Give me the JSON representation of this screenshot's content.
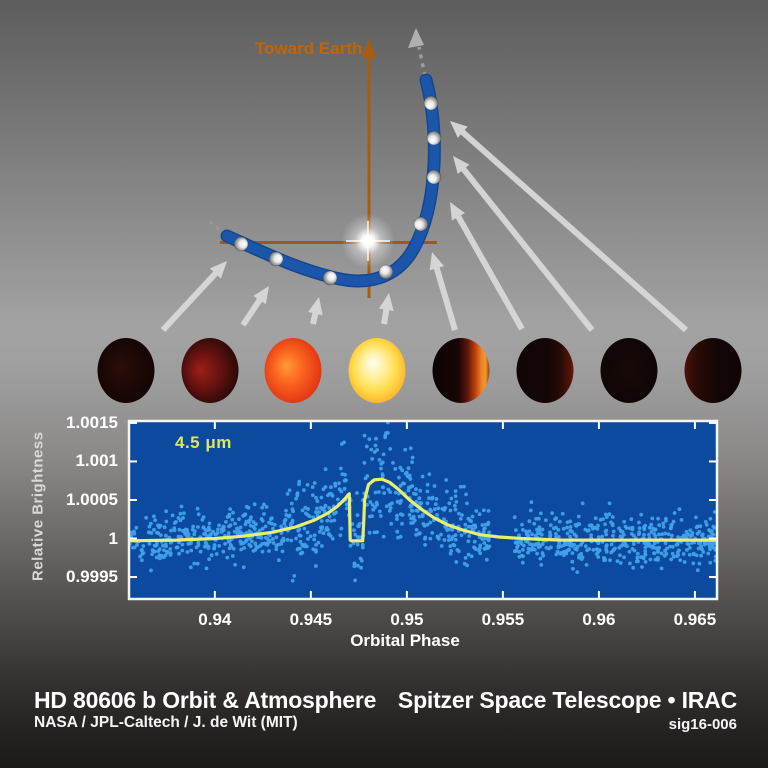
{
  "diagram": {
    "toward_earth_label": "Toward Earth",
    "colors": {
      "axis_orange": "#a85c10",
      "text_orange": "#c26504",
      "orbit_blue": "#1c56aa",
      "arrow_gray": "#dadada",
      "star_white": "#ffffff"
    },
    "planet_phases": [
      {
        "name": "night-side-cold",
        "type": "radial",
        "fx": 0.38,
        "fy": 0.45,
        "stops": [
          [
            0,
            "#2c0e08"
          ],
          [
            55,
            "#190705"
          ],
          [
            100,
            "#0d0403"
          ]
        ]
      },
      {
        "name": "warming-dawn-glow",
        "type": "radial",
        "fx": 0.32,
        "fy": 0.5,
        "stops": [
          [
            0,
            "#9c2016"
          ],
          [
            40,
            "#661210"
          ],
          [
            75,
            "#2b0a07"
          ],
          [
            100,
            "#130504"
          ]
        ]
      },
      {
        "name": "rapid-heating",
        "type": "radial",
        "fx": 0.38,
        "fy": 0.42,
        "stops": [
          [
            0,
            "#ff9c36"
          ],
          [
            35,
            "#fb6420"
          ],
          [
            70,
            "#e63a14"
          ],
          [
            100,
            "#ad2410"
          ]
        ]
      },
      {
        "name": "peak-heating-hottest",
        "type": "radial",
        "fx": 0.42,
        "fy": 0.38,
        "stops": [
          [
            0,
            "#fffdf2"
          ],
          [
            28,
            "#fff09e"
          ],
          [
            55,
            "#ffd946"
          ],
          [
            80,
            "#ffab24"
          ],
          [
            100,
            "#ee7c1c"
          ]
        ]
      },
      {
        "name": "cooling-terminator",
        "type": "linear",
        "stops": [
          [
            0,
            "#0b0404"
          ],
          [
            45,
            "#170605"
          ],
          [
            62,
            "#5e160a"
          ],
          [
            76,
            "#c4440e"
          ],
          [
            86,
            "#f08226"
          ],
          [
            93,
            "#eb9a30"
          ],
          [
            100,
            "#9c3c0c"
          ]
        ]
      },
      {
        "name": "cooling-night-side",
        "type": "linear",
        "stops": [
          [
            0,
            "#110505"
          ],
          [
            55,
            "#150606"
          ],
          [
            78,
            "#2a0b07"
          ],
          [
            92,
            "#4e1208"
          ],
          [
            100,
            "#641a0a"
          ]
        ]
      },
      {
        "name": "cooled-dark-side",
        "type": "radial",
        "fx": 0.5,
        "fy": 0.5,
        "stops": [
          [
            0,
            "#170908"
          ],
          [
            100,
            "#0d0504"
          ]
        ]
      },
      {
        "name": "faint-residual-glow",
        "type": "linear",
        "stops": [
          [
            0,
            "#48120a"
          ],
          [
            25,
            "#260a06"
          ],
          [
            60,
            "#130606"
          ],
          [
            100,
            "#0e0504"
          ]
        ]
      }
    ]
  },
  "chart_data": {
    "type": "scatter",
    "series_label": "4.5 μm",
    "xlabel": "Orbital Phase",
    "ylabel": "Relative Brightness",
    "x_ticks": [
      0.94,
      0.945,
      0.95,
      0.955,
      0.96,
      0.965
    ],
    "x_tick_labels": [
      "0.94",
      "0.945",
      "0.95",
      "0.955",
      "0.96",
      "0.965"
    ],
    "y_ticks": [
      1.0015,
      1.001,
      1.0005,
      1,
      0.9995
    ],
    "y_tick_labels": [
      "1.0015",
      "1.001",
      "1.0005",
      "1",
      "0.9995"
    ],
    "xlim": [
      0.93553,
      0.96615
    ],
    "ylim": [
      0.999215,
      1.001525
    ],
    "grid": false,
    "model_curve": {
      "x": [
        0.9355,
        0.938,
        0.94,
        0.9415,
        0.943,
        0.9442,
        0.9452,
        0.9459,
        0.9464,
        0.9468,
        0.94695,
        0.947,
        0.94705,
        0.9471,
        0.9477,
        0.94775,
        0.9478,
        0.948,
        0.9483,
        0.9487,
        0.9491,
        0.9496,
        0.9501,
        0.9507,
        0.9514,
        0.9521,
        0.9529,
        0.9538,
        0.9548,
        0.956,
        0.958,
        0.961,
        0.964,
        0.9662
      ],
      "y": [
        0.99997,
        0.99998,
        1.0,
        1.00003,
        1.00008,
        1.00015,
        1.00024,
        1.00033,
        1.00042,
        1.00052,
        1.00057,
        1.00058,
        0.99998,
        0.99997,
        0.99997,
        1.0002,
        1.0005,
        1.0007,
        1.00076,
        1.00077,
        1.00073,
        1.00063,
        1.00051,
        1.00039,
        1.00027,
        1.00018,
        1.00011,
        1.00005,
        1.00002,
        1.0,
        0.99998,
        0.99998,
        0.99998,
        0.99998
      ]
    },
    "scatter_noise": {
      "n": 1250,
      "seed": 42,
      "sigma_base": 0.00017,
      "bumps": [
        {
          "range": [
            0.9437,
            0.9532
          ],
          "sigma": 0.00026
        },
        {
          "range": [
            0.9462,
            0.9496
          ],
          "sigma": 0.00031
        }
      ],
      "gap": [
        0.9544,
        0.9556
      ]
    },
    "colors": {
      "plot_bg": "#0b4a9e",
      "scatter": "#41a0ec",
      "curve": "#e7ef6d",
      "label": "#dce75e",
      "axis_text": "#ffffff"
    }
  },
  "footer": {
    "left_title": "HD 80606 b Orbit & Atmosphere",
    "left_credit": "NASA / JPL-Caltech / J. de Wit (MIT)",
    "right_title": "Spitzer Space Telescope • IRAC",
    "right_code": "sig16-006"
  }
}
